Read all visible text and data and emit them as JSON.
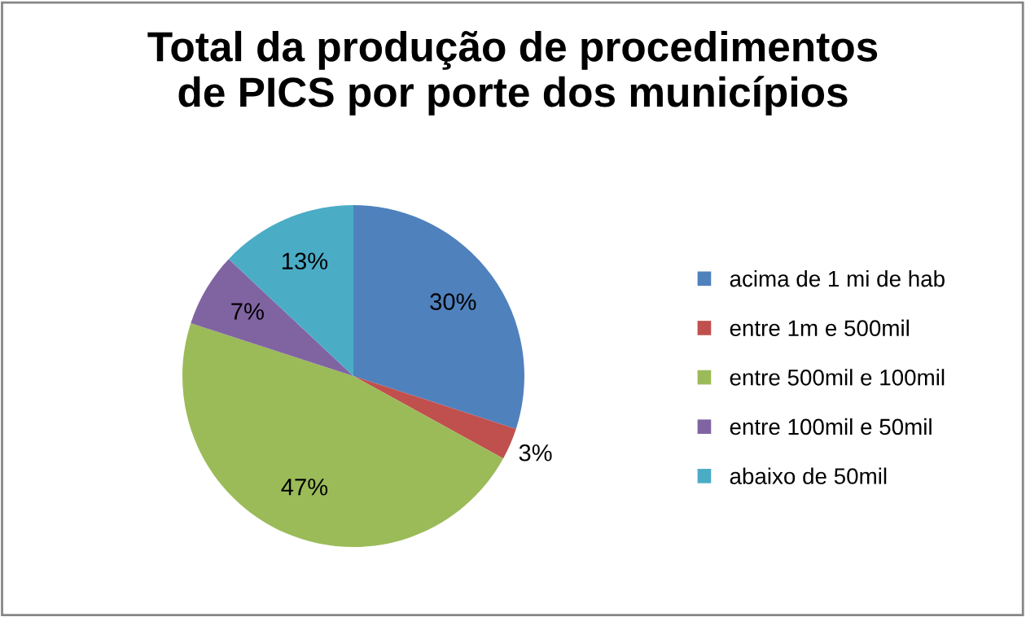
{
  "chart_data": {
    "type": "pie",
    "title": "Total da produção de procedimentos\nde PICS por porte dos municípios",
    "categories": [
      "acima de 1 mi de hab",
      "entre 1m e 500mil",
      "entre 500mil e 100mil",
      "entre 100mil e 50mil",
      "abaixo de 50mil"
    ],
    "values": [
      30,
      3,
      47,
      7,
      13
    ],
    "colors": [
      "#4f81bd",
      "#c0504d",
      "#9bbb59",
      "#8064a2",
      "#4bacc6"
    ],
    "value_labels": [
      "30%",
      "3%",
      "47%",
      "7%",
      "13%"
    ],
    "legend": "right"
  }
}
